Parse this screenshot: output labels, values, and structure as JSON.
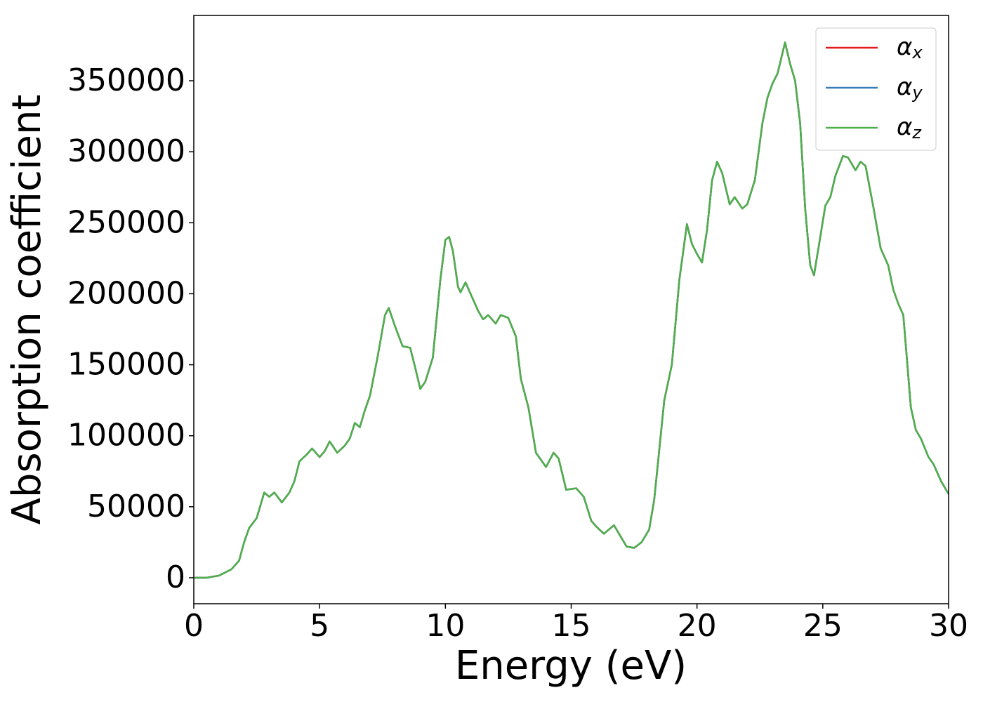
{
  "chart_data": {
    "type": "line",
    "x_label": "Energy (eV)",
    "y_label": "Absorption coefficient",
    "x": [
      0,
      0.5,
      1,
      1.5,
      1.8,
      2.0,
      2.2,
      2.5,
      2.8,
      3.0,
      3.2,
      3.5,
      3.8,
      4.0,
      4.2,
      4.5,
      4.7,
      5.0,
      5.2,
      5.4,
      5.7,
      6.0,
      6.2,
      6.4,
      6.6,
      6.8,
      7.0,
      7.3,
      7.6,
      7.75,
      8.0,
      8.3,
      8.6,
      8.8,
      9.0,
      9.2,
      9.5,
      9.8,
      10.0,
      10.15,
      10.3,
      10.5,
      10.6,
      10.8,
      11.0,
      11.3,
      11.5,
      11.7,
      12.0,
      12.2,
      12.5,
      12.8,
      13.0,
      13.3,
      13.6,
      14.0,
      14.3,
      14.5,
      14.8,
      15.2,
      15.5,
      15.8,
      16.0,
      16.3,
      16.7,
      17.0,
      17.2,
      17.5,
      17.8,
      18.1,
      18.3,
      18.5,
      18.7,
      19.0,
      19.3,
      19.6,
      19.8,
      20.0,
      20.2,
      20.4,
      20.6,
      20.8,
      21.0,
      21.3,
      21.5,
      21.8,
      22.0,
      22.3,
      22.6,
      22.8,
      23.0,
      23.2,
      23.5,
      23.7,
      23.9,
      24.1,
      24.3,
      24.5,
      24.65,
      24.9,
      25.1,
      25.3,
      25.5,
      25.8,
      26.0,
      26.3,
      26.5,
      26.7,
      27.0,
      27.3,
      27.6,
      27.8,
      28.0,
      28.2,
      28.5,
      28.7,
      28.9,
      29.2,
      29.4,
      29.7,
      30
    ],
    "series": [
      {
        "name": "αx",
        "color": "#e41a1c",
        "values": [
          0,
          0,
          1500,
          6000,
          12000,
          25000,
          35000,
          42000,
          60000,
          57000,
          60000,
          53000,
          60000,
          68000,
          82000,
          87000,
          91000,
          85000,
          89000,
          96000,
          88000,
          93000,
          98000,
          109000,
          106000,
          118000,
          128000,
          155000,
          185000,
          190000,
          177000,
          163000,
          162000,
          148000,
          133000,
          138000,
          155000,
          210000,
          238000,
          240000,
          230000,
          205000,
          201000,
          208000,
          200000,
          188000,
          182000,
          185000,
          179000,
          185000,
          183000,
          170000,
          140000,
          120000,
          88000,
          78000,
          88000,
          84000,
          62000,
          63000,
          57000,
          40000,
          36000,
          31000,
          37000,
          28000,
          22000,
          21000,
          25000,
          34000,
          55000,
          90000,
          125000,
          150000,
          210000,
          249000,
          235000,
          228000,
          222000,
          245000,
          280000,
          293000,
          285000,
          263000,
          268000,
          260000,
          263000,
          280000,
          320000,
          338000,
          348000,
          355000,
          377000,
          362000,
          350000,
          320000,
          260000,
          220000,
          213000,
          240000,
          262000,
          268000,
          283000,
          297000,
          296000,
          287000,
          293000,
          290000,
          262000,
          232000,
          220000,
          203000,
          193000,
          185000,
          120000,
          104000,
          98000,
          85000,
          80000,
          68000,
          59000
        ]
      },
      {
        "name": "αy",
        "color": "#377eb8",
        "values": [
          0,
          0,
          1500,
          6000,
          12000,
          25000,
          35000,
          42000,
          60000,
          57000,
          60000,
          53000,
          60000,
          68000,
          82000,
          87000,
          91000,
          85000,
          89000,
          96000,
          88000,
          93000,
          98000,
          109000,
          106000,
          118000,
          128000,
          155000,
          185000,
          190000,
          177000,
          163000,
          162000,
          148000,
          133000,
          138000,
          155000,
          210000,
          238000,
          240000,
          230000,
          205000,
          201000,
          208000,
          200000,
          188000,
          182000,
          185000,
          179000,
          185000,
          183000,
          170000,
          140000,
          120000,
          88000,
          78000,
          88000,
          84000,
          62000,
          63000,
          57000,
          40000,
          36000,
          31000,
          37000,
          28000,
          22000,
          21000,
          25000,
          34000,
          55000,
          90000,
          125000,
          150000,
          210000,
          249000,
          235000,
          228000,
          222000,
          245000,
          280000,
          293000,
          285000,
          263000,
          268000,
          260000,
          263000,
          280000,
          320000,
          338000,
          348000,
          355000,
          377000,
          362000,
          350000,
          320000,
          260000,
          220000,
          213000,
          240000,
          262000,
          268000,
          283000,
          297000,
          296000,
          287000,
          293000,
          290000,
          262000,
          232000,
          220000,
          203000,
          193000,
          185000,
          120000,
          104000,
          98000,
          85000,
          80000,
          68000,
          59000
        ]
      },
      {
        "name": "αz",
        "color": "#4daf4a",
        "values": [
          0,
          0,
          1500,
          6000,
          12000,
          25000,
          35000,
          42000,
          60000,
          57000,
          60000,
          53000,
          60000,
          68000,
          82000,
          87000,
          91000,
          85000,
          89000,
          96000,
          88000,
          93000,
          98000,
          109000,
          106000,
          118000,
          128000,
          155000,
          185000,
          190000,
          177000,
          163000,
          162000,
          148000,
          133000,
          138000,
          155000,
          210000,
          238000,
          240000,
          230000,
          205000,
          201000,
          208000,
          200000,
          188000,
          182000,
          185000,
          179000,
          185000,
          183000,
          170000,
          140000,
          120000,
          88000,
          78000,
          88000,
          84000,
          62000,
          63000,
          57000,
          40000,
          36000,
          31000,
          37000,
          28000,
          22000,
          21000,
          25000,
          34000,
          55000,
          90000,
          125000,
          150000,
          210000,
          249000,
          235000,
          228000,
          222000,
          245000,
          280000,
          293000,
          285000,
          263000,
          268000,
          260000,
          263000,
          280000,
          320000,
          338000,
          348000,
          355000,
          377000,
          362000,
          350000,
          320000,
          260000,
          220000,
          213000,
          240000,
          262000,
          268000,
          283000,
          297000,
          296000,
          287000,
          293000,
          290000,
          262000,
          232000,
          220000,
          203000,
          193000,
          185000,
          120000,
          104000,
          98000,
          85000,
          80000,
          68000,
          59000
        ]
      }
    ],
    "xlim": [
      0,
      30
    ],
    "xticks": [
      0,
      5,
      10,
      15,
      20,
      25,
      30
    ],
    "ylim": [
      -18300,
      396000
    ],
    "yticks": [
      0,
      50000,
      100000,
      150000,
      200000,
      250000,
      300000,
      350000
    ],
    "legend": "upper right",
    "grid": false
  }
}
